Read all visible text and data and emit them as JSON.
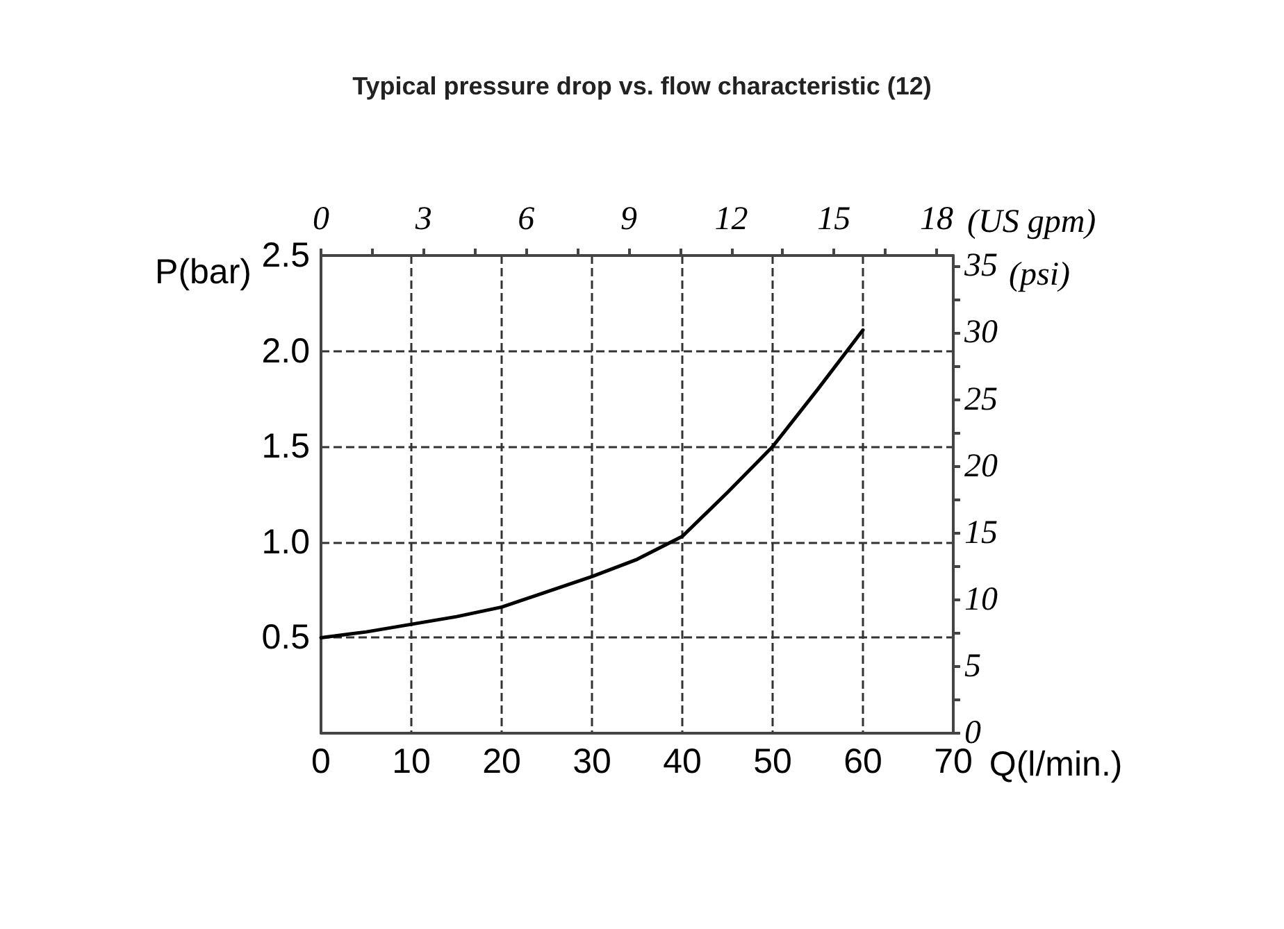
{
  "chart_data": {
    "type": "line",
    "title": "Typical pressure drop vs. flow characteristic (12)",
    "xlabel": "Q(l/min.)",
    "ylabel": "P(bar)",
    "x2label": "(US gpm)",
    "y2label": "(psi)",
    "x": [
      0,
      5,
      10,
      15,
      20,
      25,
      30,
      35,
      40,
      45,
      50,
      55,
      60
    ],
    "series": [
      {
        "color": "#000000",
        "values": [
          0.5,
          0.53,
          0.57,
          0.61,
          0.66,
          0.74,
          0.82,
          0.91,
          1.03,
          1.26,
          1.5,
          1.8,
          2.11
        ]
      }
    ],
    "xlim": [
      0,
      70
    ],
    "xticks": [
      0,
      10,
      20,
      30,
      40,
      50,
      60,
      70
    ],
    "ylim": [
      0,
      2.5
    ],
    "yticks": [
      {
        "value": 0.5,
        "label": "0.5"
      },
      {
        "value": 1,
        "label": "1.0"
      },
      {
        "value": 1.5,
        "label": "1.5"
      },
      {
        "value": 2,
        "label": "2.0"
      },
      {
        "value": 2.5,
        "label": "2.5"
      }
    ],
    "x2lim": [
      0,
      18.49
    ],
    "x2ticks": [
      0,
      {
        "value": 1.5,
        "label": null
      },
      3,
      {
        "value": 4.5,
        "label": null
      },
      6,
      {
        "value": 7.5,
        "label": null
      },
      9,
      {
        "value": 10.5,
        "label": null
      },
      12,
      {
        "value": 13.5,
        "label": null
      },
      15,
      {
        "value": 16.5,
        "label": null
      },
      18
    ],
    "y2lim": [
      0,
      35.8
    ],
    "y2ticks": [
      0,
      {
        "value": 2.5,
        "label": null
      },
      5,
      {
        "value": 7.5,
        "label": null
      },
      10,
      {
        "value": 12.5,
        "label": null
      },
      15,
      {
        "value": 17.5,
        "label": null
      },
      20,
      {
        "value": 22.5,
        "label": null
      },
      25,
      {
        "value": 27.5,
        "label": null
      },
      30,
      {
        "value": 32.5,
        "label": null
      },
      35
    ],
    "grid": true,
    "marker": "none",
    "line_style": "solid"
  }
}
